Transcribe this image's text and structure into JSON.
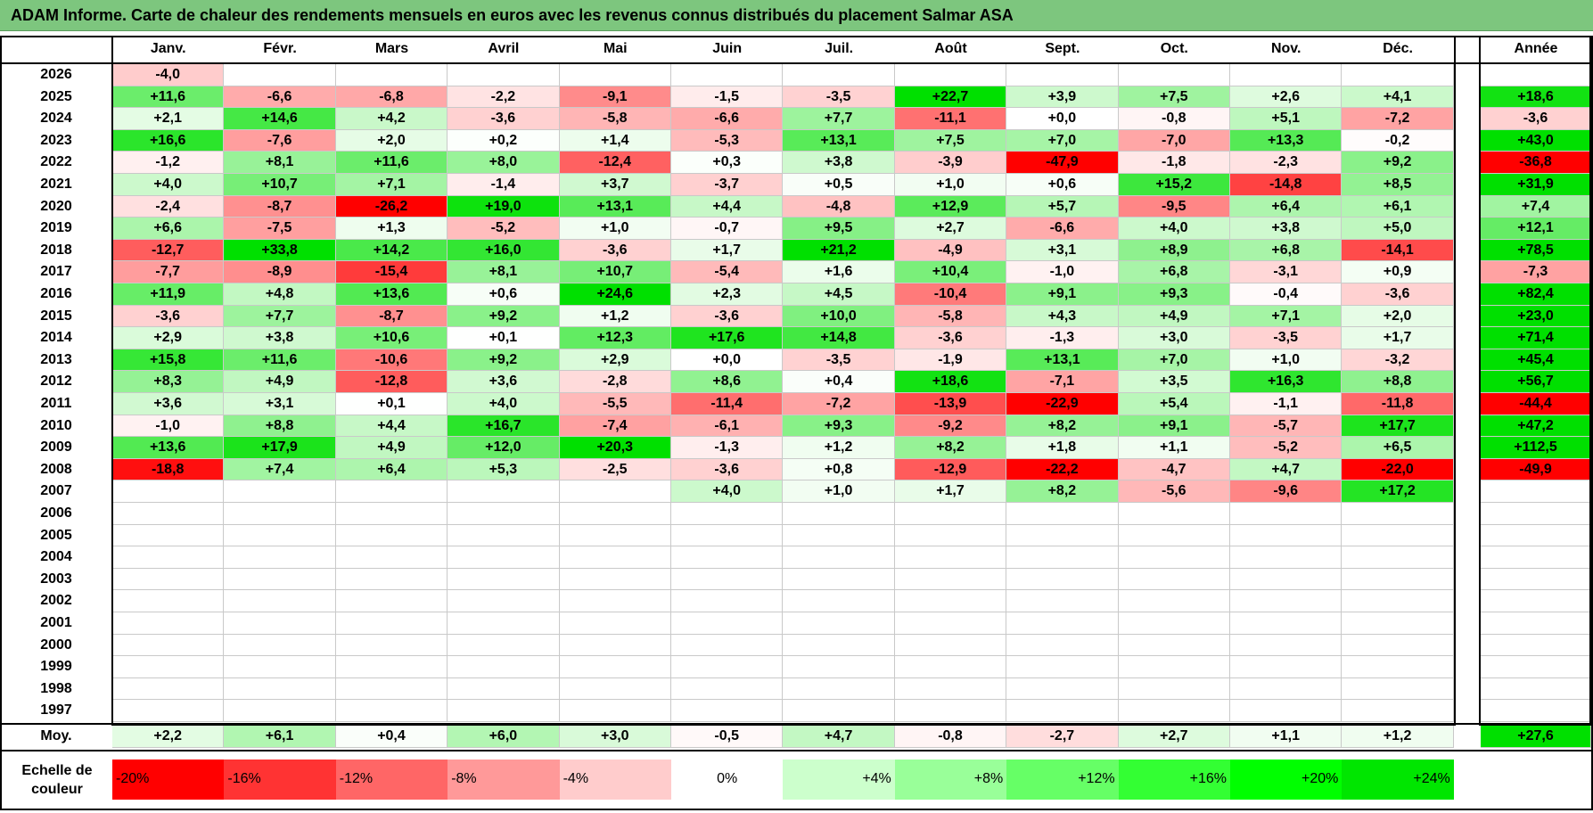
{
  "title": "ADAM Informe. Carte de chaleur des rendements mensuels en euros avec les revenus connus distribués du placement Salmar ASA",
  "chart_data": {
    "type": "heatmap",
    "columns": [
      "Janv.",
      "Févr.",
      "Mars",
      "Avril",
      "Mai",
      "Juin",
      "Juil.",
      "Août",
      "Sept.",
      "Oct.",
      "Nov.",
      "Déc."
    ],
    "year_header": "Année",
    "average_label": "Moy.",
    "rows": [
      {
        "year": "2026",
        "months": [
          "-4,0",
          "",
          "",
          "",
          "",
          "",
          "",
          "",
          "",
          "",
          "",
          ""
        ],
        "annual": ""
      },
      {
        "year": "2025",
        "months": [
          "+11,6",
          "-6,6",
          "-6,8",
          "-2,2",
          "-9,1",
          "-1,5",
          "-3,5",
          "+22,7",
          "+3,9",
          "+7,5",
          "+2,6",
          "+4,1"
        ],
        "annual": "+18,6"
      },
      {
        "year": "2024",
        "months": [
          "+2,1",
          "+14,6",
          "+4,2",
          "-3,6",
          "-5,8",
          "-6,6",
          "+7,7",
          "-11,1",
          "+0,0",
          "-0,8",
          "+5,1",
          "-7,2"
        ],
        "annual": "-3,6"
      },
      {
        "year": "2023",
        "months": [
          "+16,6",
          "-7,6",
          "+2,0",
          "+0,2",
          "+1,4",
          "-5,3",
          "+13,1",
          "+7,5",
          "+7,0",
          "-7,0",
          "+13,3",
          "-0,2"
        ],
        "annual": "+43,0"
      },
      {
        "year": "2022",
        "months": [
          "-1,2",
          "+8,1",
          "+11,6",
          "+8,0",
          "-12,4",
          "+0,3",
          "+3,8",
          "-3,9",
          "-47,9",
          "-1,8",
          "-2,3",
          "+9,2"
        ],
        "annual": "-36,8"
      },
      {
        "year": "2021",
        "months": [
          "+4,0",
          "+10,7",
          "+7,1",
          "-1,4",
          "+3,7",
          "-3,7",
          "+0,5",
          "+1,0",
          "+0,6",
          "+15,2",
          "-14,8",
          "+8,5"
        ],
        "annual": "+31,9"
      },
      {
        "year": "2020",
        "months": [
          "-2,4",
          "-8,7",
          "-26,2",
          "+19,0",
          "+13,1",
          "+4,4",
          "-4,8",
          "+12,9",
          "+5,7",
          "-9,5",
          "+6,4",
          "+6,1"
        ],
        "annual": "+7,4"
      },
      {
        "year": "2019",
        "months": [
          "+6,6",
          "-7,5",
          "+1,3",
          "-5,2",
          "+1,0",
          "-0,7",
          "+9,5",
          "+2,7",
          "-6,6",
          "+4,0",
          "+3,8",
          "+5,0"
        ],
        "annual": "+12,1"
      },
      {
        "year": "2018",
        "months": [
          "-12,7",
          "+33,8",
          "+14,2",
          "+16,0",
          "-3,6",
          "+1,7",
          "+21,2",
          "-4,9",
          "+3,1",
          "+8,9",
          "+6,8",
          "-14,1"
        ],
        "annual": "+78,5"
      },
      {
        "year": "2017",
        "months": [
          "-7,7",
          "-8,9",
          "-15,4",
          "+8,1",
          "+10,7",
          "-5,4",
          "+1,6",
          "+10,4",
          "-1,0",
          "+6,8",
          "-3,1",
          "+0,9"
        ],
        "annual": "-7,3"
      },
      {
        "year": "2016",
        "months": [
          "+11,9",
          "+4,8",
          "+13,6",
          "+0,6",
          "+24,6",
          "+2,3",
          "+4,5",
          "-10,4",
          "+9,1",
          "+9,3",
          "-0,4",
          "-3,6"
        ],
        "annual": "+82,4"
      },
      {
        "year": "2015",
        "months": [
          "-3,6",
          "+7,7",
          "-8,7",
          "+9,2",
          "+1,2",
          "-3,6",
          "+10,0",
          "-5,8",
          "+4,3",
          "+4,9",
          "+7,1",
          "+2,0"
        ],
        "annual": "+23,0"
      },
      {
        "year": "2014",
        "months": [
          "+2,9",
          "+3,8",
          "+10,6",
          "+0,1",
          "+12,3",
          "+17,6",
          "+14,8",
          "-3,6",
          "-1,3",
          "+3,0",
          "-3,5",
          "+1,7"
        ],
        "annual": "+71,4"
      },
      {
        "year": "2013",
        "months": [
          "+15,8",
          "+11,6",
          "-10,6",
          "+9,2",
          "+2,9",
          "+0,0",
          "-3,5",
          "-1,9",
          "+13,1",
          "+7,0",
          "+1,0",
          "-3,2"
        ],
        "annual": "+45,4"
      },
      {
        "year": "2012",
        "months": [
          "+8,3",
          "+4,9",
          "-12,8",
          "+3,6",
          "-2,8",
          "+8,6",
          "+0,4",
          "+18,6",
          "-7,1",
          "+3,5",
          "+16,3",
          "+8,8"
        ],
        "annual": "+56,7"
      },
      {
        "year": "2011",
        "months": [
          "+3,6",
          "+3,1",
          "+0,1",
          "+4,0",
          "-5,5",
          "-11,4",
          "-7,2",
          "-13,9",
          "-22,9",
          "+5,4",
          "-1,1",
          "-11,8"
        ],
        "annual": "-44,4"
      },
      {
        "year": "2010",
        "months": [
          "-1,0",
          "+8,8",
          "+4,4",
          "+16,7",
          "-7,4",
          "-6,1",
          "+9,3",
          "-9,2",
          "+8,2",
          "+9,1",
          "-5,7",
          "+17,7"
        ],
        "annual": "+47,2"
      },
      {
        "year": "2009",
        "months": [
          "+13,6",
          "+17,9",
          "+4,9",
          "+12,0",
          "+20,3",
          "-1,3",
          "+1,2",
          "+8,2",
          "+1,8",
          "+1,1",
          "-5,2",
          "+6,5"
        ],
        "annual": "+112,5"
      },
      {
        "year": "2008",
        "months": [
          "-18,8",
          "+7,4",
          "+6,4",
          "+5,3",
          "-2,5",
          "-3,6",
          "+0,8",
          "-12,9",
          "-22,2",
          "-4,7",
          "+4,7",
          "-22,0"
        ],
        "annual": "-49,9"
      },
      {
        "year": "2007",
        "months": [
          "",
          "",
          "",
          "",
          "",
          "+4,0",
          "+1,0",
          "+1,7",
          "+8,2",
          "-5,6",
          "-9,6",
          "+17,2"
        ],
        "annual": ""
      },
      {
        "year": "2006",
        "months": [
          "",
          "",
          "",
          "",
          "",
          "",
          "",
          "",
          "",
          "",
          "",
          ""
        ],
        "annual": ""
      },
      {
        "year": "2005",
        "months": [
          "",
          "",
          "",
          "",
          "",
          "",
          "",
          "",
          "",
          "",
          "",
          ""
        ],
        "annual": ""
      },
      {
        "year": "2004",
        "months": [
          "",
          "",
          "",
          "",
          "",
          "",
          "",
          "",
          "",
          "",
          "",
          ""
        ],
        "annual": ""
      },
      {
        "year": "2003",
        "months": [
          "",
          "",
          "",
          "",
          "",
          "",
          "",
          "",
          "",
          "",
          "",
          ""
        ],
        "annual": ""
      },
      {
        "year": "2002",
        "months": [
          "",
          "",
          "",
          "",
          "",
          "",
          "",
          "",
          "",
          "",
          "",
          ""
        ],
        "annual": ""
      },
      {
        "year": "2001",
        "months": [
          "",
          "",
          "",
          "",
          "",
          "",
          "",
          "",
          "",
          "",
          "",
          ""
        ],
        "annual": ""
      },
      {
        "year": "2000",
        "months": [
          "",
          "",
          "",
          "",
          "",
          "",
          "",
          "",
          "",
          "",
          "",
          ""
        ],
        "annual": ""
      },
      {
        "year": "1999",
        "months": [
          "",
          "",
          "",
          "",
          "",
          "",
          "",
          "",
          "",
          "",
          "",
          ""
        ],
        "annual": ""
      },
      {
        "year": "1998",
        "months": [
          "",
          "",
          "",
          "",
          "",
          "",
          "",
          "",
          "",
          "",
          "",
          ""
        ],
        "annual": ""
      },
      {
        "year": "1997",
        "months": [
          "",
          "",
          "",
          "",
          "",
          "",
          "",
          "",
          "",
          "",
          "",
          ""
        ],
        "annual": ""
      }
    ],
    "average": {
      "months": [
        "+2,2",
        "+6,1",
        "+0,4",
        "+6,0",
        "+3,0",
        "-0,5",
        "+4,7",
        "-0,8",
        "-2,7",
        "+2,7",
        "+1,1",
        "+1,2"
      ],
      "annual": "+27,6"
    },
    "color_scale": {
      "label": "Echelle de couleur",
      "steps": [
        "-20%",
        "-16%",
        "-12%",
        "-8%",
        "-4%",
        "0%",
        "+4%",
        "+8%",
        "+12%",
        "+16%",
        "+20%",
        "+24%"
      ],
      "step_colors": [
        "#ff0000",
        "#ff3333",
        "#ff6666",
        "#ff9999",
        "#ffcccc",
        "#ffffff",
        "#ccffcc",
        "#99ff99",
        "#66ff66",
        "#33ff33",
        "#00ff00",
        "#00e600"
      ]
    },
    "colors": {
      "negative": "#ff0000",
      "positive": "#00e000",
      "title_bg": "#7dc67e"
    }
  }
}
